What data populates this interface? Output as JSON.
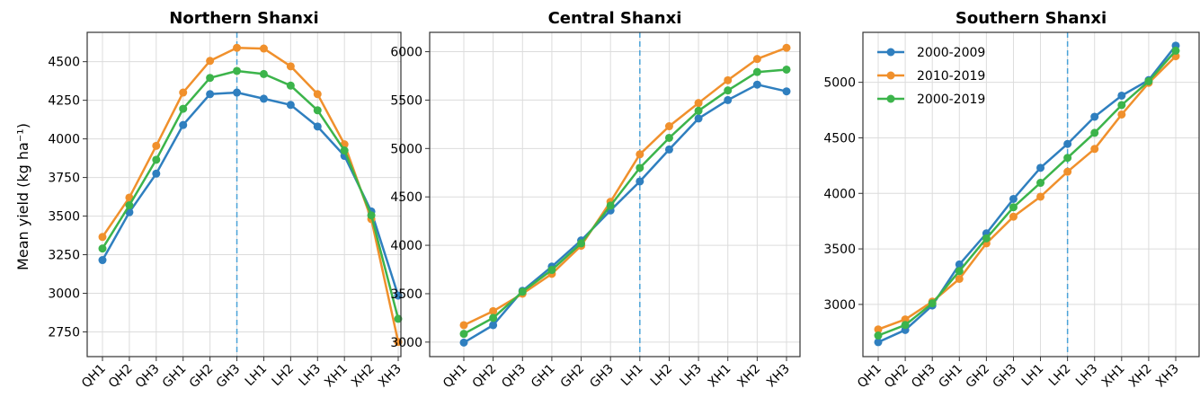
{
  "ylabel": "Mean yield (kg ha⁻¹)",
  "colors": {
    "s0": "#2f7fbf",
    "s1": "#f0902c",
    "s2": "#3cb44b",
    "divider": "#4aa3d8",
    "grid": "#dcdcdc"
  },
  "chart_data": [
    {
      "type": "line",
      "title": "Northern Shanxi",
      "categories": [
        "QH1",
        "QH2",
        "QH3",
        "GH1",
        "GH2",
        "GH3",
        "LH1",
        "LH2",
        "LH3",
        "XH1",
        "XH2",
        "XH3"
      ],
      "ylim": [
        2590,
        4690
      ],
      "yticks": [
        2750,
        3000,
        3250,
        3500,
        3750,
        4000,
        4250,
        4500
      ],
      "divider_after": "GH3",
      "grid": true,
      "series": [
        {
          "name": "2000-2009",
          "values": [
            3215,
            3525,
            3775,
            4090,
            4290,
            4300,
            4260,
            4220,
            4080,
            3890,
            3530,
            2985
          ]
        },
        {
          "name": "2010-2019",
          "values": [
            3365,
            3620,
            3955,
            4300,
            4505,
            4590,
            4585,
            4470,
            4290,
            3965,
            3480,
            2685
          ]
        },
        {
          "name": "2000-2019",
          "values": [
            3290,
            3570,
            3865,
            4195,
            4395,
            4440,
            4420,
            4345,
            4185,
            3925,
            3505,
            2835
          ]
        }
      ]
    },
    {
      "type": "line",
      "title": "Central Shanxi",
      "categories": [
        "QH1",
        "QH2",
        "QH3",
        "GH1",
        "GH2",
        "GH3",
        "LH1",
        "LH2",
        "LH3",
        "XH1",
        "XH2",
        "XH3"
      ],
      "ylim": [
        2850,
        6200
      ],
      "yticks": [
        3000,
        3500,
        4000,
        4500,
        5000,
        5500,
        6000
      ],
      "divider_after": "LH1",
      "grid": true,
      "series": [
        {
          "name": "2000-2009",
          "values": [
            2995,
            3175,
            3530,
            3780,
            4050,
            4360,
            4660,
            4990,
            5310,
            5500,
            5660,
            5590
          ]
        },
        {
          "name": "2010-2019",
          "values": [
            3175,
            3320,
            3500,
            3705,
            3995,
            4450,
            4940,
            5230,
            5470,
            5705,
            5925,
            6040
          ]
        },
        {
          "name": "2000-2019",
          "values": [
            3085,
            3250,
            3520,
            3745,
            4020,
            4410,
            4800,
            5110,
            5390,
            5600,
            5790,
            5815
          ]
        }
      ]
    },
    {
      "type": "line",
      "title": "Southern Shanxi",
      "categories": [
        "QH1",
        "QH2",
        "QH3",
        "GH1",
        "GH2",
        "GH3",
        "LH1",
        "LH2",
        "LH3",
        "XH1",
        "XH2",
        "XH3"
      ],
      "ylim": [
        2530,
        5450
      ],
      "yticks": [
        3000,
        3500,
        4000,
        4500,
        5000
      ],
      "divider_after": "LH2",
      "grid": true,
      "legend": "top-left",
      "series": [
        {
          "name": "2000-2009",
          "values": [
            2660,
            2770,
            2990,
            3360,
            3640,
            3950,
            4230,
            4445,
            4690,
            4880,
            5020,
            5330
          ]
        },
        {
          "name": "2010-2019",
          "values": [
            2775,
            2865,
            3025,
            3230,
            3550,
            3790,
            3970,
            4195,
            4400,
            4710,
            4995,
            5235
          ]
        },
        {
          "name": "2000-2019",
          "values": [
            2720,
            2815,
            3010,
            3300,
            3595,
            3875,
            4095,
            4320,
            4545,
            4795,
            5010,
            5285
          ]
        }
      ]
    }
  ]
}
